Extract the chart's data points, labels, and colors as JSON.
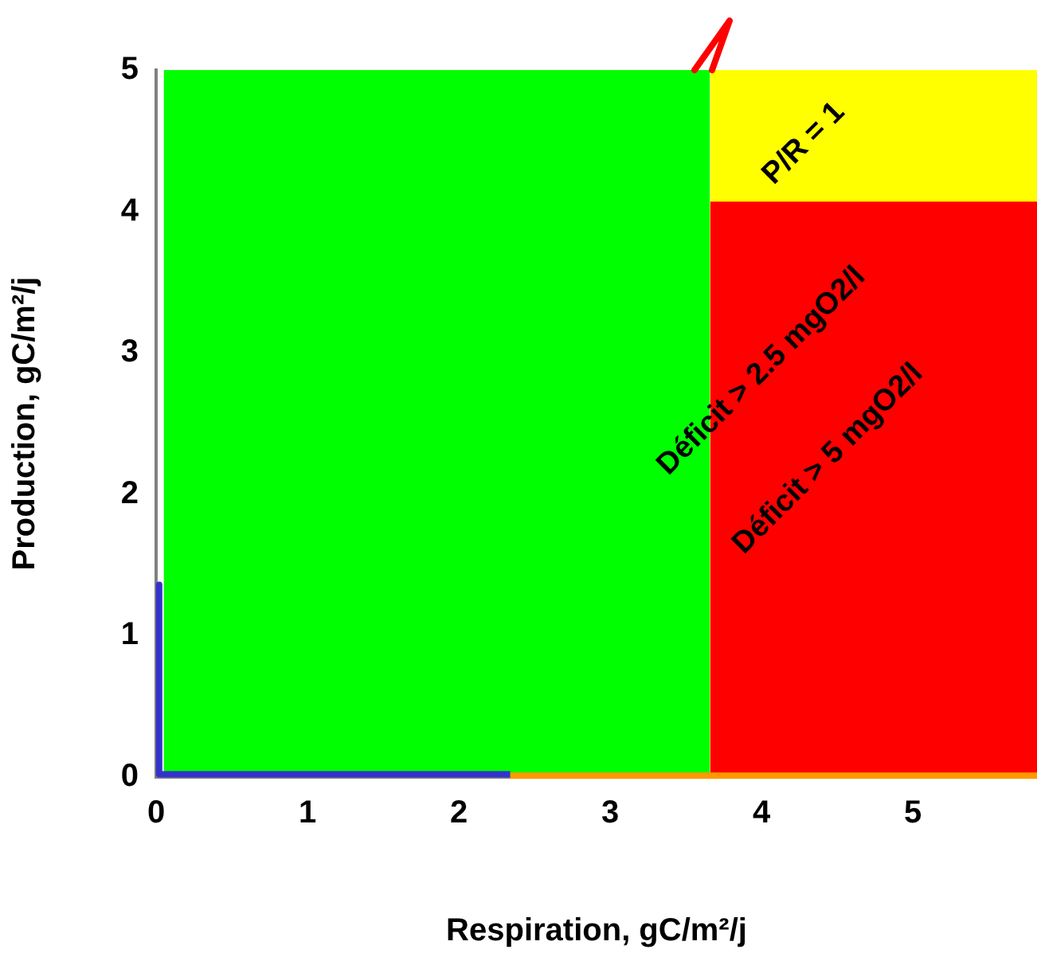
{
  "chart_data": {
    "type": "area",
    "xlabel": "Respiration, gC/m²/j",
    "ylabel": "Production, gC/m²/j",
    "xlim": [
      0,
      5.82
    ],
    "xticks": [
      0,
      1,
      2,
      3,
      4,
      5
    ],
    "ylim": [
      0,
      5
    ],
    "yticks": [
      0,
      1,
      2,
      3,
      4,
      5
    ],
    "grid": false,
    "legend": false,
    "series": [
      {
        "type": "area",
        "color": "#00ff00",
        "x": [
          0.05,
          3.66
        ],
        "values": [
          5,
          5
        ]
      },
      {
        "type": "area",
        "color": "#ffff00",
        "x": [
          3.66,
          5.82
        ],
        "values": [
          5,
          5
        ]
      },
      {
        "type": "area",
        "color": "#ff0000",
        "x": [
          3.66,
          5.82
        ],
        "values": [
          4.07,
          4.07
        ]
      },
      {
        "type": "line",
        "color": "#3333cc",
        "x": [
          0.02,
          0.02,
          2.34
        ],
        "values": [
          1.36,
          0.02,
          0.02
        ]
      },
      {
        "type": "line",
        "color": "#ff9900",
        "x": [
          2.34,
          5.82
        ],
        "values": [
          0.01,
          0.01
        ]
      }
    ],
    "annotations": [
      "P/R = 1",
      "Déficit > 2.5 mgO2/l",
      "Déficit > 5 mgO2/l"
    ]
  }
}
